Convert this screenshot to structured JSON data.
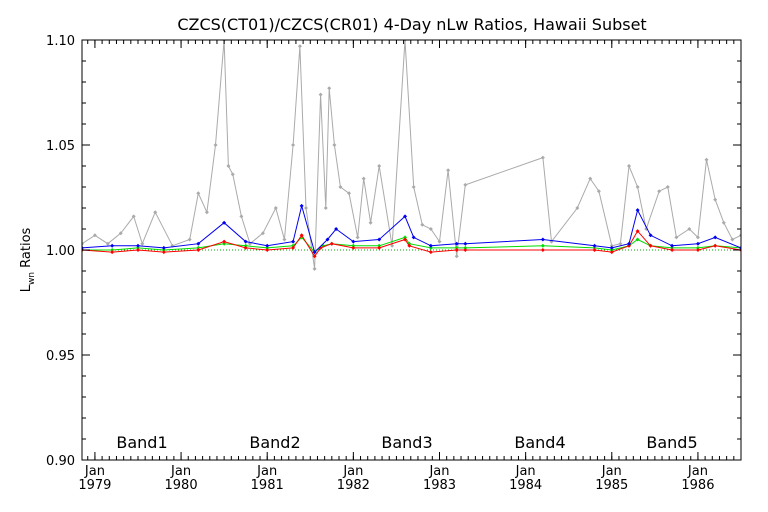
{
  "chart_data": {
    "type": "line",
    "title": "CZCS(CT01)/CZCS(CR01) 4-Day nLw Ratios, Hawaii Subset",
    "ylabel_main": "L",
    "ylabel_sub": "wn",
    "ylabel_rest": " Ratios",
    "xlim": [
      1978.85,
      1986.5
    ],
    "ylim": [
      0.9,
      1.1
    ],
    "yticks": [
      {
        "value": 0.9,
        "label": "0.90"
      },
      {
        "value": 0.95,
        "label": "0.95"
      },
      {
        "value": 1.0,
        "label": "1.00"
      },
      {
        "value": 1.05,
        "label": "1.05"
      },
      {
        "value": 1.1,
        "label": "1.10"
      }
    ],
    "xticks": [
      {
        "value": 1979,
        "label1": "Jan",
        "label2": "1979"
      },
      {
        "value": 1980,
        "label1": "Jan",
        "label2": "1980"
      },
      {
        "value": 1981,
        "label1": "Jan",
        "label2": "1981"
      },
      {
        "value": 1982,
        "label1": "Jan",
        "label2": "1982"
      },
      {
        "value": 1983,
        "label1": "Jan",
        "label2": "1983"
      },
      {
        "value": 1984,
        "label1": "Jan",
        "label2": "1984"
      },
      {
        "value": 1985,
        "label1": "Jan",
        "label2": "1985"
      },
      {
        "value": 1986,
        "label1": "Jan",
        "label2": "1986"
      }
    ],
    "reference_line": 1.0,
    "series": [
      {
        "name": "Band1",
        "color": "#00dd00",
        "x": [
          1978.85,
          1979.2,
          1979.5,
          1979.8,
          1980.2,
          1980.5,
          1980.75,
          1981.0,
          1981.3,
          1981.4,
          1981.55,
          1981.65,
          1981.75,
          1982.0,
          1982.3,
          1982.6,
          1982.65,
          1982.9,
          1983.2,
          1983.3,
          1984.2,
          1984.8,
          1985.0,
          1985.2,
          1985.3,
          1985.45,
          1985.7,
          1986.0,
          1986.2,
          1986.5
        ],
        "values": [
          1.0,
          1.0,
          1.001,
          1.0,
          1.001,
          1.003,
          1.002,
          1.001,
          1.002,
          1.006,
          0.999,
          1.002,
          1.003,
          1.002,
          1.002,
          1.006,
          1.003,
          1.001,
          1.001,
          1.001,
          1.002,
          1.001,
          1.0,
          1.002,
          1.005,
          1.002,
          1.001,
          1.001,
          1.002,
          1.001
        ]
      },
      {
        "name": "Band2",
        "color": "#ff0000",
        "x": [
          1978.85,
          1979.2,
          1979.5,
          1979.8,
          1980.2,
          1980.5,
          1980.75,
          1981.0,
          1981.3,
          1981.4,
          1981.55,
          1981.62,
          1981.75,
          1982.0,
          1982.3,
          1982.6,
          1982.65,
          1982.9,
          1983.2,
          1983.3,
          1984.2,
          1984.8,
          1985.0,
          1985.2,
          1985.3,
          1985.45,
          1985.7,
          1986.0,
          1986.2,
          1986.5
        ],
        "values": [
          1.0,
          0.999,
          1.0,
          0.999,
          1.0,
          1.004,
          1.001,
          1.0,
          1.001,
          1.007,
          0.997,
          1.001,
          1.003,
          1.001,
          1.001,
          1.005,
          1.002,
          0.999,
          1.0,
          1.0,
          1.0,
          1.0,
          0.999,
          1.002,
          1.009,
          1.002,
          1.0,
          1.0,
          1.002,
          1.0
        ]
      },
      {
        "name": "Band3",
        "color": "#0000ee",
        "x": [
          1978.85,
          1979.2,
          1979.5,
          1979.8,
          1980.2,
          1980.5,
          1980.75,
          1981.0,
          1981.3,
          1981.4,
          1981.55,
          1981.7,
          1981.8,
          1982.0,
          1982.3,
          1982.6,
          1982.7,
          1982.9,
          1983.2,
          1983.3,
          1984.2,
          1984.8,
          1985.0,
          1985.2,
          1985.3,
          1985.45,
          1985.7,
          1986.0,
          1986.2,
          1986.5
        ],
        "values": [
          1.001,
          1.002,
          1.002,
          1.001,
          1.003,
          1.013,
          1.004,
          1.002,
          1.004,
          1.021,
          0.999,
          1.005,
          1.01,
          1.004,
          1.005,
          1.016,
          1.006,
          1.002,
          1.003,
          1.003,
          1.005,
          1.002,
          1.001,
          1.003,
          1.019,
          1.007,
          1.002,
          1.003,
          1.006,
          1.001
        ]
      },
      {
        "name": "Band4",
        "color": "#aaaaaa",
        "x": [
          1978.85,
          1979.0,
          1979.15,
          1979.3,
          1979.45,
          1979.55,
          1979.7,
          1979.9,
          1980.1,
          1980.2,
          1980.3,
          1980.4,
          1980.5,
          1980.55,
          1980.6,
          1980.7,
          1980.8,
          1980.95,
          1981.1,
          1981.2,
          1981.3,
          1981.38,
          1981.45,
          1981.55,
          1981.62,
          1981.68,
          1981.72,
          1981.78,
          1981.85,
          1981.95,
          1982.05,
          1982.12,
          1982.2,
          1982.3,
          1982.45,
          1982.6,
          1982.7,
          1982.8,
          1982.9,
          1983.0,
          1983.1,
          1983.2,
          1983.3,
          1984.2,
          1984.3,
          1984.6,
          1984.75,
          1984.85,
          1985.0,
          1985.1,
          1985.2,
          1985.3,
          1985.4,
          1985.55,
          1985.65,
          1985.75,
          1985.9,
          1986.0,
          1986.1,
          1986.2,
          1986.3,
          1986.4,
          1986.5
        ],
        "values": [
          1.003,
          1.007,
          1.003,
          1.008,
          1.016,
          1.003,
          1.018,
          1.002,
          1.005,
          1.027,
          1.018,
          1.05,
          1.1,
          1.04,
          1.036,
          1.016,
          1.003,
          1.008,
          1.02,
          1.005,
          1.05,
          1.097,
          1.02,
          0.991,
          1.074,
          1.02,
          1.077,
          1.05,
          1.03,
          1.027,
          1.006,
          1.034,
          1.013,
          1.04,
          1.002,
          1.1,
          1.03,
          1.012,
          1.01,
          1.004,
          1.038,
          0.997,
          1.031,
          1.044,
          1.004,
          1.02,
          1.034,
          1.028,
          1.002,
          1.003,
          1.04,
          1.03,
          1.01,
          1.028,
          1.03,
          1.006,
          1.01,
          1.006,
          1.043,
          1.024,
          1.013,
          1.005,
          1.007
        ]
      },
      {
        "name": "Band5",
        "color": "#ff00ff",
        "x": [],
        "values": []
      }
    ],
    "legend": [
      "Band1",
      "Band2",
      "Band3",
      "Band4",
      "Band5"
    ],
    "legend_position": "bottom"
  }
}
